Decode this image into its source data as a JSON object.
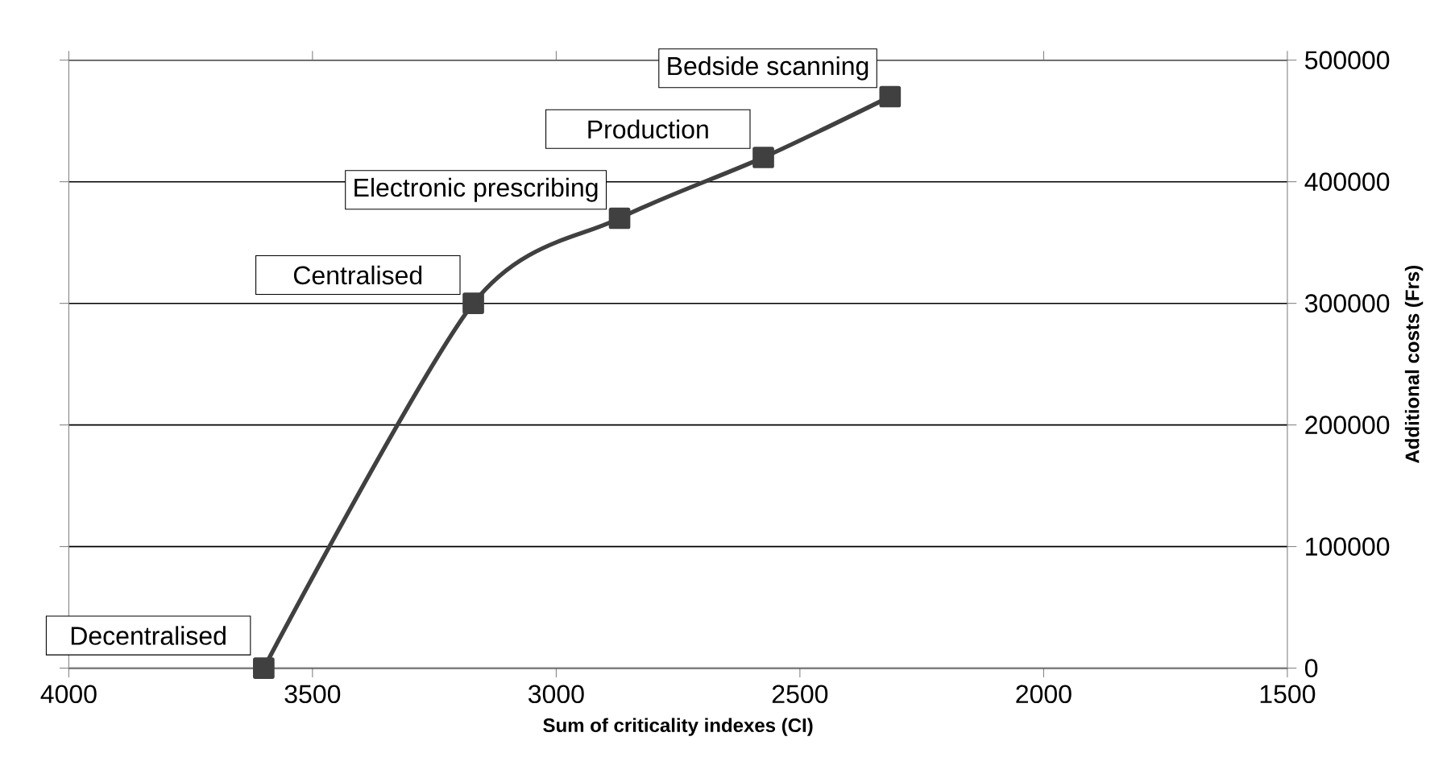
{
  "chart_data": {
    "type": "line",
    "xlabel": "Sum of criticality indexes (CI)",
    "ylabel": "Additional costs (Frs)",
    "x": [
      3600,
      3170,
      2870,
      2575,
      2315
    ],
    "series": [
      {
        "color": "#404040",
        "values": [
          0,
          300000,
          370000,
          420000,
          470000
        ]
      }
    ],
    "xlim": [
      4000,
      1500
    ],
    "xticks": [
      4000,
      3500,
      3000,
      2500,
      2000,
      1500
    ],
    "ylim": [
      0,
      500000
    ],
    "yticks": [
      0,
      100000,
      200000,
      300000,
      400000,
      500000
    ],
    "grid": "y",
    "marker": "square",
    "line_style": "solid",
    "annotations": [
      {
        "text": "Decentralised",
        "x": 3600,
        "y": 0
      },
      {
        "text": "Centralised",
        "x": 3170,
        "y": 300000
      },
      {
        "text": "Electronic prescribing",
        "x": 2870,
        "y": 370000
      },
      {
        "text": "Production",
        "x": 2575,
        "y": 420000
      },
      {
        "text": "Bedside scanning",
        "x": 2315,
        "y": 470000
      }
    ]
  }
}
